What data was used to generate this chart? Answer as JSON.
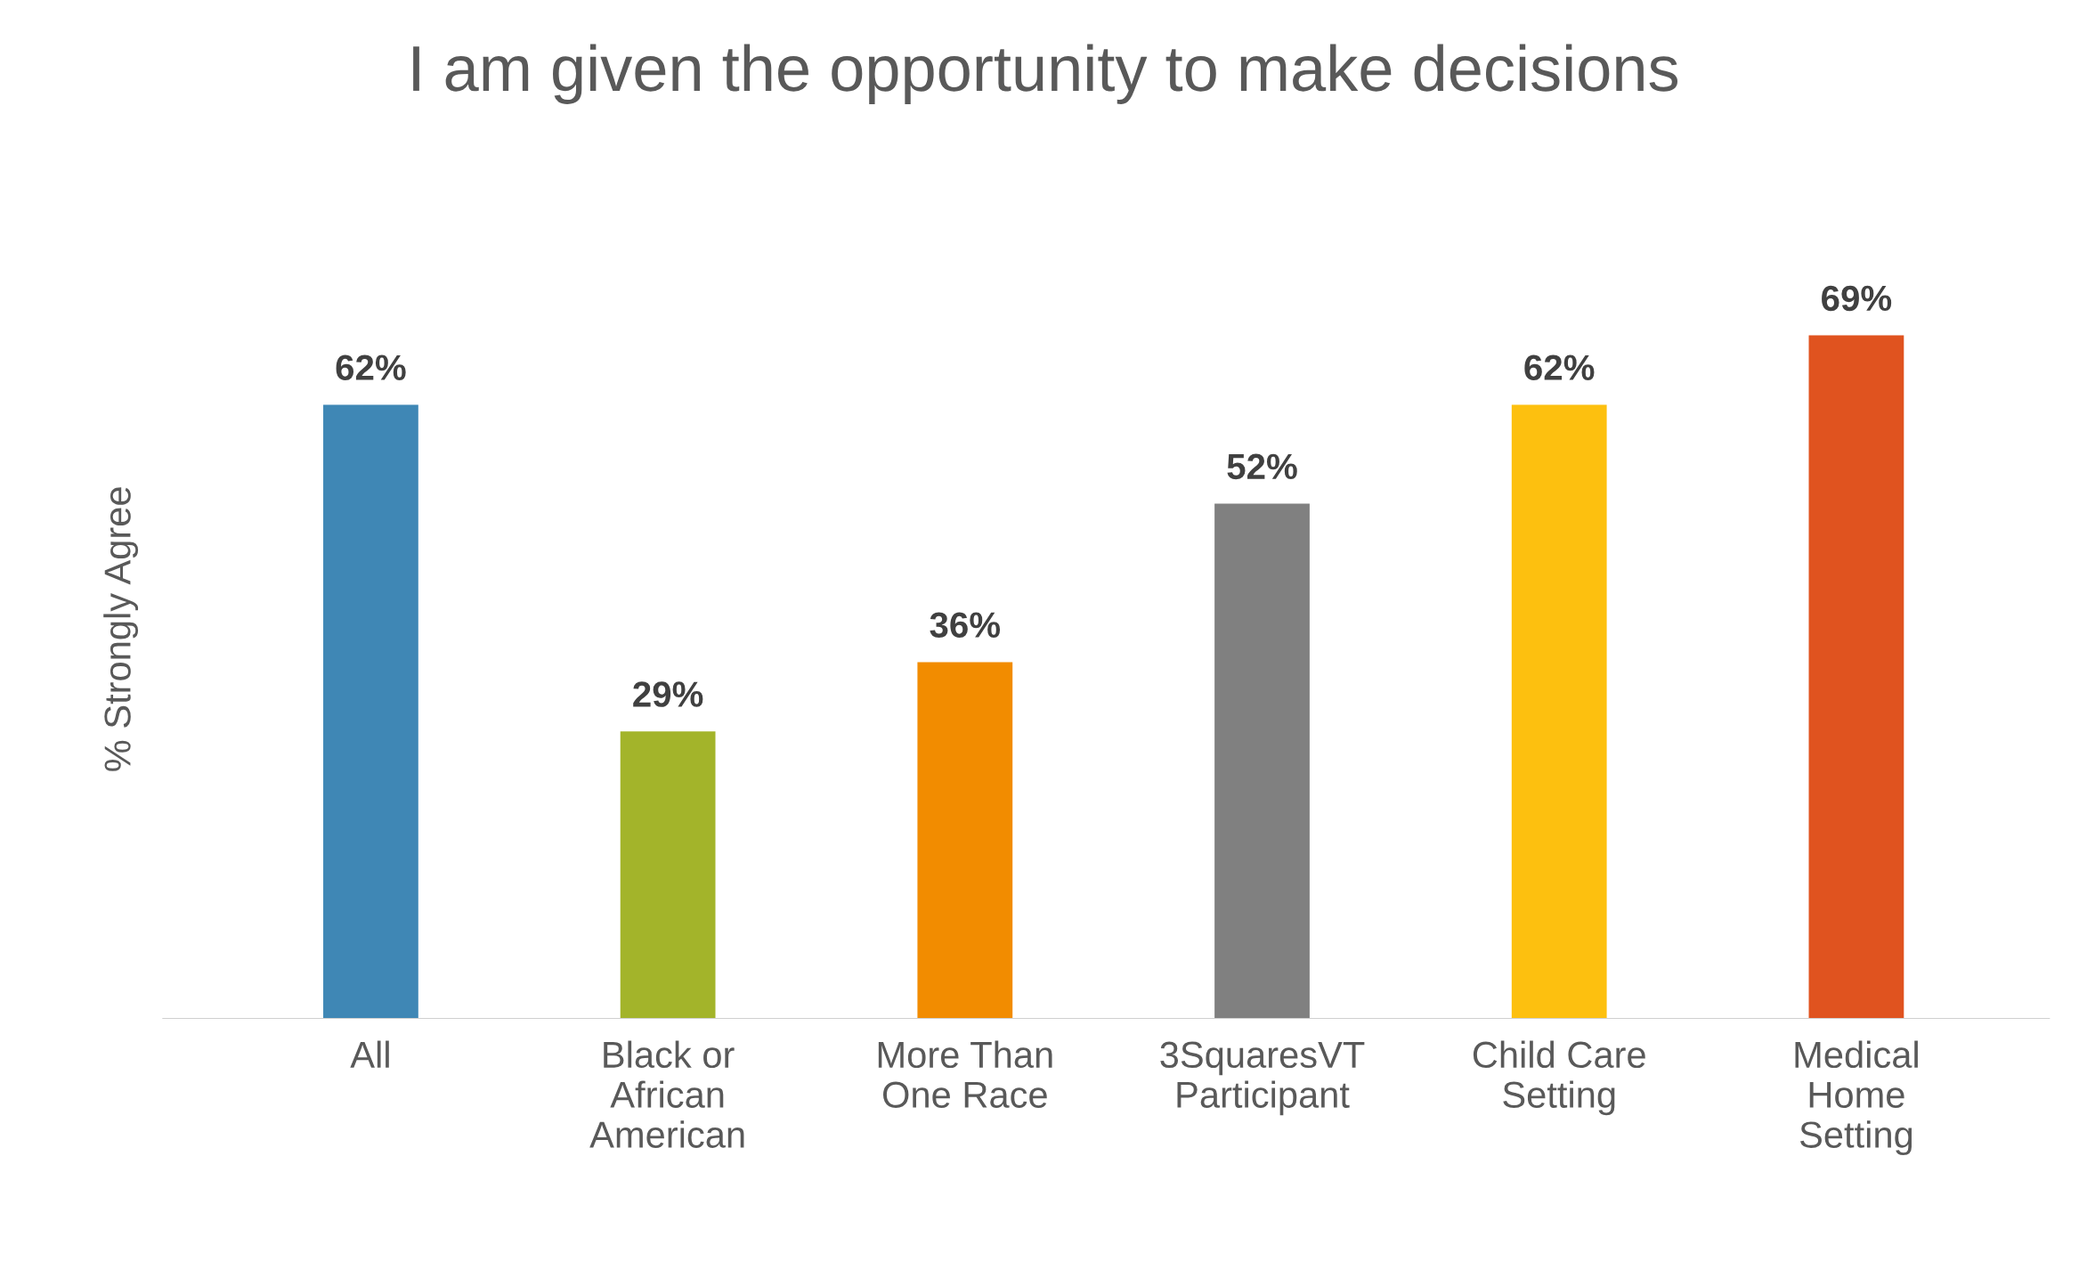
{
  "chart_data": {
    "type": "bar",
    "title": "I am given the opportunity to make decisions",
    "ylabel": "% Strongly Agree",
    "categories": [
      "All",
      "Black or\nAfrican\nAmerican",
      "More Than\nOne Race",
      "3SquaresVT\nParticipant",
      "Child Care\nSetting",
      "Medical\nHome\nSetting"
    ],
    "values": [
      62,
      29,
      36,
      52,
      62,
      69
    ],
    "colors": [
      "#3f87b5",
      "#a3b42a",
      "#f28c00",
      "#808080",
      "#fdc00f",
      "#e0531f"
    ],
    "value_labels": [
      "62%",
      "29%",
      "36%",
      "52%",
      "62%",
      "69%"
    ],
    "tick_labels": "x",
    "grid": false,
    "legend": false
  }
}
